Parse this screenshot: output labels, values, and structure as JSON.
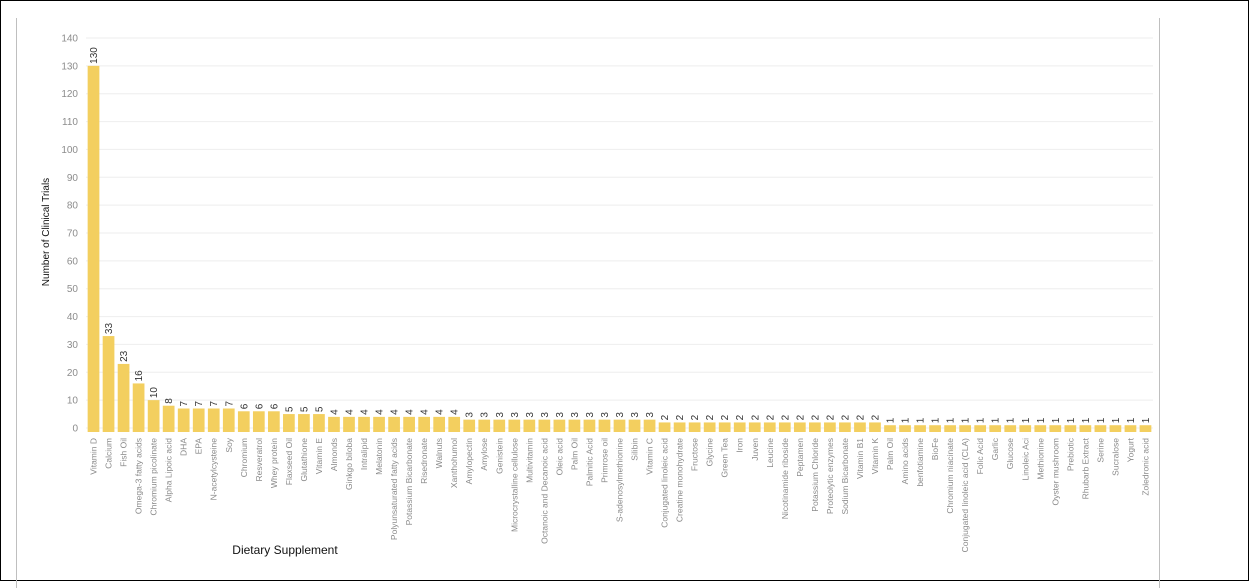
{
  "chart_data": {
    "type": "bar",
    "xlabel": "Dietary Supplement",
    "ylabel": "Number of Clinical Trials",
    "ylim": [
      0,
      140
    ],
    "yticks": [
      0,
      10,
      20,
      30,
      40,
      50,
      60,
      70,
      80,
      90,
      100,
      110,
      120,
      130,
      140
    ],
    "grid": true,
    "bar_color": "#f3cf5f",
    "categories": [
      "Vitamin D",
      "Calcium",
      "Fish Oil",
      "Omega-3 fatty acids",
      "Chromium picolinate",
      "Alpha Lipoic acid",
      "DHA",
      "EPA",
      "N-acetylcysteine",
      "Soy",
      "Chromium",
      "Resveratrol",
      "Whey protein",
      "Flaxseed Oil",
      "Glutathione",
      "Vitamin E",
      "Almonds",
      "Ginkgo biloba",
      "Intralipid",
      "Melatonin",
      "Polyunsaturated fatty acids",
      "Potassium Bicarbonate",
      "Risedronate",
      "Walnuts",
      "Xanthohumol",
      "Amylopectin",
      "Amylose",
      "Genistein",
      "Microcrystalline cellulose",
      "Multivitamin",
      "Octanoic and Decanoic acid",
      "Oleic acid",
      "Palm Oil",
      "Palmitic Acid",
      "Primrose oil",
      "S-adenosylmethionine",
      "Silibin",
      "Vitamin C",
      "Conjugated linoleic acid",
      "Creatine monohydrate",
      "Fructose",
      "Glycine",
      "Green Tea",
      "Iron",
      "Juven",
      "Leucine",
      "Nicotinamide riboside",
      "Peptamen",
      "Potassium Chloride",
      "Proteolytic enzymes",
      "Sodium Bicarbonate",
      "Vitamin B1",
      "Vitamin K",
      "Palm Oil",
      "Amino acids",
      "benfotiamine",
      "BioFe",
      "Chromium niacinate",
      "Conjugated linoleic acid (CLA)",
      "Folic Acid",
      "Garlic",
      "Glucose",
      "Linoleic Aci",
      "Methionine",
      "Oyster mushroom",
      "Prebiotic",
      "Rhubarb Extract",
      "Serine",
      "Sucralose",
      "Yogurt",
      "Zoledronic acid"
    ],
    "values": [
      130,
      33,
      23,
      16,
      10,
      8,
      7,
      7,
      7,
      7,
      6,
      6,
      6,
      5,
      5,
      5,
      4,
      4,
      4,
      4,
      4,
      4,
      4,
      4,
      4,
      3,
      3,
      3,
      3,
      3,
      3,
      3,
      3,
      3,
      3,
      3,
      3,
      3,
      2,
      2,
      2,
      2,
      2,
      2,
      2,
      2,
      2,
      2,
      2,
      2,
      2,
      2,
      2,
      1,
      1,
      1,
      1,
      1,
      1,
      1,
      1,
      1,
      1,
      1,
      1,
      1,
      1,
      1,
      1,
      1,
      1
    ]
  }
}
